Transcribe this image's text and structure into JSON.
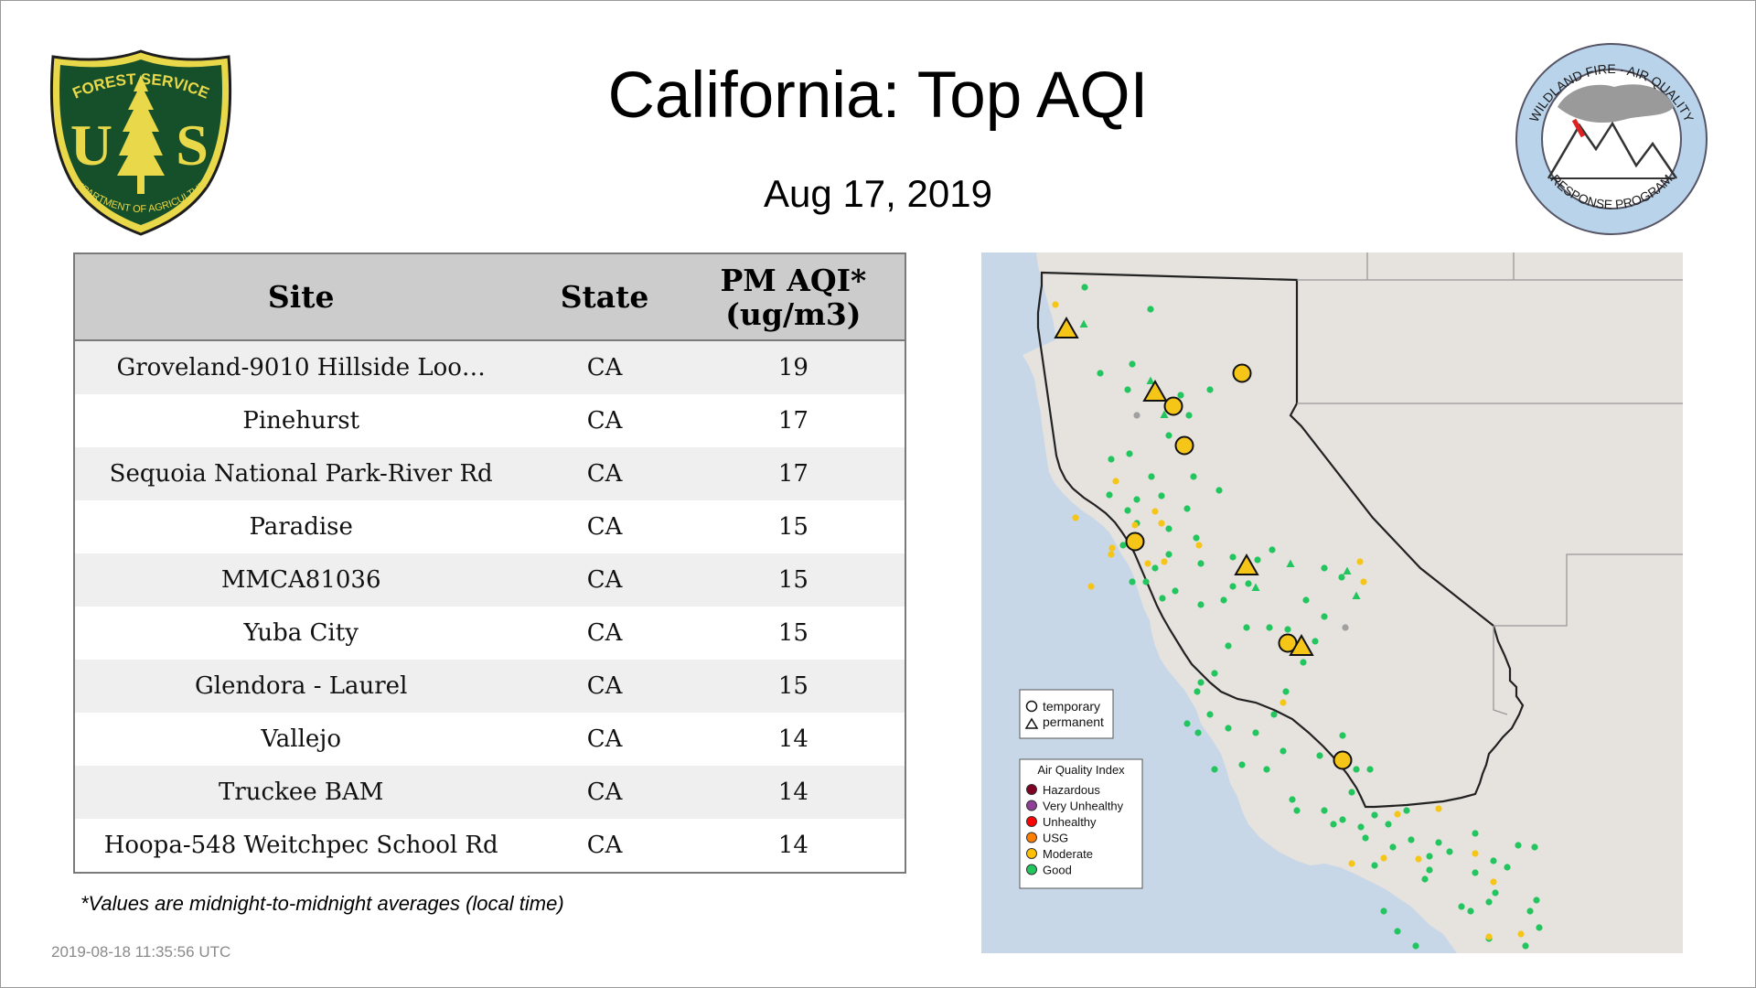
{
  "header": {
    "title": "California: Top AQI",
    "date": "Aug 17, 2019"
  },
  "logos": {
    "usfs": {
      "top_text": "FOREST SERVICE",
      "letters": "U S",
      "bottom_text": "DEPARTMENT OF AGRICULTURE"
    },
    "wfaq": {
      "top_text": "WILDLAND FIRE · AIR QUALITY",
      "bottom_text": "RESPONSE PROGRAM"
    }
  },
  "table": {
    "headers": {
      "site": "Site",
      "state": "State",
      "aqi_line1": "PM AQI*",
      "aqi_line2": "(ug/m3)"
    },
    "rows": [
      {
        "site": "Groveland-9010 Hillside Loo…",
        "state": "CA",
        "aqi": "19"
      },
      {
        "site": "Pinehurst",
        "state": "CA",
        "aqi": "17"
      },
      {
        "site": "Sequoia National Park-River Rd",
        "state": "CA",
        "aqi": "17"
      },
      {
        "site": "Paradise",
        "state": "CA",
        "aqi": "15"
      },
      {
        "site": "MMCA81036",
        "state": "CA",
        "aqi": "15"
      },
      {
        "site": "Yuba City",
        "state": "CA",
        "aqi": "15"
      },
      {
        "site": "Glendora - Laurel",
        "state": "CA",
        "aqi": "15"
      },
      {
        "site": "Vallejo",
        "state": "CA",
        "aqi": "14"
      },
      {
        "site": "Truckee BAM",
        "state": "CA",
        "aqi": "14"
      },
      {
        "site": "Hoopa-548 Weitchpec School Rd",
        "state": "CA",
        "aqi": "14"
      }
    ]
  },
  "footnote": "*Values are midnight-to-midnight averages (local time)",
  "timestamp": "2019-08-18 11:35:56 UTC",
  "map": {
    "legend_type": {
      "temporary": "temporary",
      "permanent": "permanent"
    },
    "legend_aqi": {
      "title": "Air Quality Index",
      "items": [
        {
          "label": "Hazardous",
          "color": "#7e0023"
        },
        {
          "label": "Very Unhealthy",
          "color": "#8f3f97"
        },
        {
          "label": "Unhealthy",
          "color": "#ff0000"
        },
        {
          "label": "USG",
          "color": "#ff7e00"
        },
        {
          "label": "Moderate",
          "color": "#ffc107"
        },
        {
          "label": "Good",
          "color": "#22c55e"
        }
      ]
    },
    "colors": {
      "ocean": "#c7d7e8",
      "land": "#e6e3df",
      "good": "#22c55e",
      "moderate": "#f5c518",
      "unknown": "#a0a0a0"
    }
  }
}
